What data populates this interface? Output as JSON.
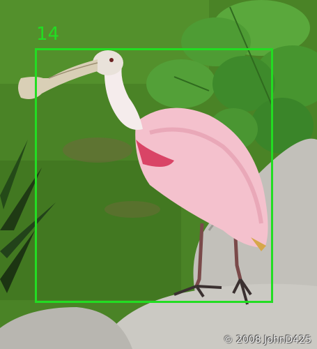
{
  "detection": {
    "label": "14",
    "box_color": "#22dd22"
  },
  "watermark": {
    "text": "© 2008 JohnD425"
  },
  "colors": {
    "grass": "#4f8a2a",
    "leaves": "#3f8f32",
    "rock": "#bdbbb6",
    "bird_body": "#f2b8c6",
    "bird_wing_accent": "#d94466",
    "bill": "#d8cfb8"
  }
}
